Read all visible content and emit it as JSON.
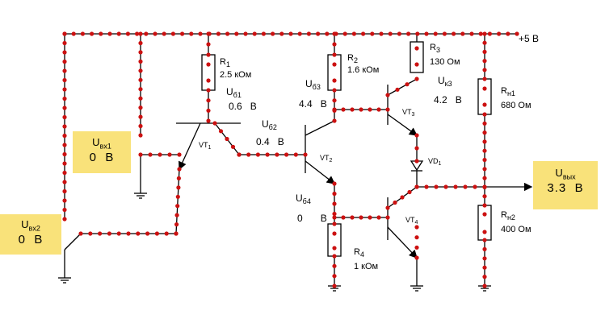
{
  "supply": "+5 В",
  "resistors": {
    "r1": {
      "name": "R",
      "idx": "1",
      "value": "2.5 кОм"
    },
    "r2": {
      "name": "R",
      "idx": "2",
      "value": "1.6 кОм"
    },
    "r3": {
      "name": "R",
      "idx": "3",
      "value": "130 Ом"
    },
    "r4": {
      "name": "R",
      "idx": "4",
      "value": "1 кОм"
    },
    "rn1": {
      "name": "R",
      "idx": "н1",
      "value": "680 Ом"
    },
    "rn2": {
      "name": "R",
      "idx": "н2",
      "value": "400 Ом"
    }
  },
  "transistors": {
    "vt1": "VT",
    "vt1_idx": "1",
    "vt2": "VT",
    "vt2_idx": "2",
    "vt3": "VT",
    "vt3_idx": "3",
    "vt4": "VT",
    "vt4_idx": "4"
  },
  "diode": {
    "name": "VD",
    "idx": "1"
  },
  "voltages": {
    "ub1": {
      "name": "U",
      "idx": "б1",
      "value": "0.6",
      "unit": "В"
    },
    "ub2": {
      "name": "U",
      "idx": "б2",
      "value": "0.4",
      "unit": "В"
    },
    "ub3": {
      "name": "U",
      "idx": "б3",
      "value": "4.4",
      "unit": "В"
    },
    "uk3": {
      "name": "U",
      "idx": "к3",
      "value": "4.2",
      "unit": "В"
    },
    "ub4": {
      "name": "U",
      "idx": "б4",
      "value": "0",
      "unit": "В"
    }
  },
  "inputs": {
    "in1": {
      "name": "U",
      "idx": "вх1",
      "value": "0",
      "unit": "В"
    },
    "in2": {
      "name": "U",
      "idx": "вх2",
      "value": "0",
      "unit": "В"
    }
  },
  "output": {
    "name": "U",
    "idx": "вых",
    "value": "3.3",
    "unit": "В"
  },
  "colors": {
    "wire": "#000000",
    "dot": "#cc1111",
    "panel": "#f9e27a"
  }
}
